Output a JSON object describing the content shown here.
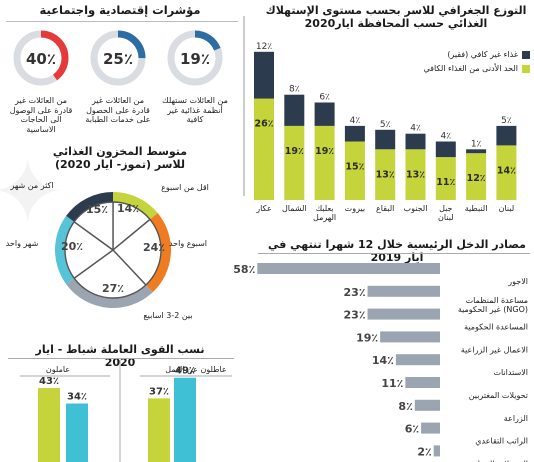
{
  "colors": {
    "dark": "#2d3b4f",
    "lime": "#c5d43a",
    "orange": "#f07c21",
    "blue": "#56c3d9",
    "teal": "#3fc0d4",
    "grey": "#9aa5b1",
    "ringRed": "#e63a3a",
    "ringBlue": "#2e6da4",
    "ringTrack": "#d9dde2"
  },
  "indicators": {
    "title": "مؤشرات إقتصادية واجتماعية",
    "items": [
      {
        "value": "19٪",
        "pct": 19,
        "caption": "من العائلات تستهلك أنظمة غذائية غير كافية",
        "ring": "ringBlue"
      },
      {
        "value": "25٪",
        "pct": 25,
        "caption": "من العائلات غير قادرة على الحصول على خدمات الطبابة",
        "ring": "ringBlue"
      },
      {
        "value": "40٪",
        "pct": 40,
        "caption": "من العائلات غير قادرة على الوصول الى الحاجات الاساسية",
        "ring": "ringRed"
      }
    ]
  },
  "chart_data": [
    {
      "type": "bar",
      "title": "التوزع الجغرافي للاسر بحسب مستوى الإستهلاك الغذائي حسب المحافظة ايار2020",
      "categories": [
        "عكار",
        "الشمال",
        "بعلبك الهرمل",
        "بيروت",
        "البقاع",
        "الجنوب",
        "جبل لبنان",
        "النبطية",
        "لبنان"
      ],
      "series": [
        {
          "name": "الحد الأدنى من الغذاء الكافي",
          "values": [
            26,
            19,
            19,
            15,
            13,
            13,
            11,
            12,
            14
          ],
          "labels": [
            "26٪",
            "19٪",
            "19٪",
            "15٪",
            "13٪",
            "13٪",
            "11٪",
            "12٪",
            "14٪"
          ]
        },
        {
          "name": "غذاء غير كافي (فقير)",
          "values": [
            12,
            8,
            6,
            4,
            5,
            4,
            4,
            1,
            5
          ],
          "labels": [
            "12٪",
            "8٪",
            "6٪",
            "4٪",
            "5٪",
            "4٪",
            "4٪",
            "1٪",
            "5٪"
          ]
        }
      ]
    },
    {
      "type": "pie",
      "title": "متوسط المخزون الغذائي للاسر (تموز- ايار 2020)",
      "categories": [
        "اقل من اسبوع",
        "اسبوع واحد",
        "بين 2-3 اسابيع",
        "شهر واحد",
        "اكثر من شهر"
      ],
      "values": [
        14,
        24,
        27,
        20,
        15
      ],
      "labels": [
        "14٪",
        "24٪",
        "27٪",
        "20٪",
        "15٪"
      ]
    },
    {
      "type": "bar",
      "title": "مصادر الدخل الرئيسية خلال 12 شهرا تنتهي في ايار 2019",
      "categories": [
        "الاجور",
        "مساعدة المنظمات غير الحكومية (NGO)",
        "المساعدة الحكومية",
        "الاعمال غير الزراعية",
        "الاستدانات",
        "تحويلات المغتربين",
        "الزراعة",
        "الراتب التقاعدي",
        "التحويلات المحلية"
      ],
      "values": [
        58,
        23,
        23,
        19,
        14,
        11,
        8,
        6,
        2
      ],
      "labels": [
        "58٪",
        "23٪",
        "23٪",
        "19٪",
        "14٪",
        "11٪",
        "8٪",
        "6٪",
        "2٪"
      ]
    },
    {
      "type": "bar",
      "title": "نسب القوى العاملة شباط - ايار 2020",
      "categories": [
        "عاطلون عن العمل",
        "عاملون"
      ],
      "series": [
        {
          "name": "",
          "values": [
            37,
            43
          ],
          "labels": [
            "37٪",
            "43٪"
          ]
        },
        {
          "name": "",
          "values": [
            49,
            34
          ],
          "labels": [
            "49٪",
            "34٪"
          ]
        }
      ]
    }
  ]
}
